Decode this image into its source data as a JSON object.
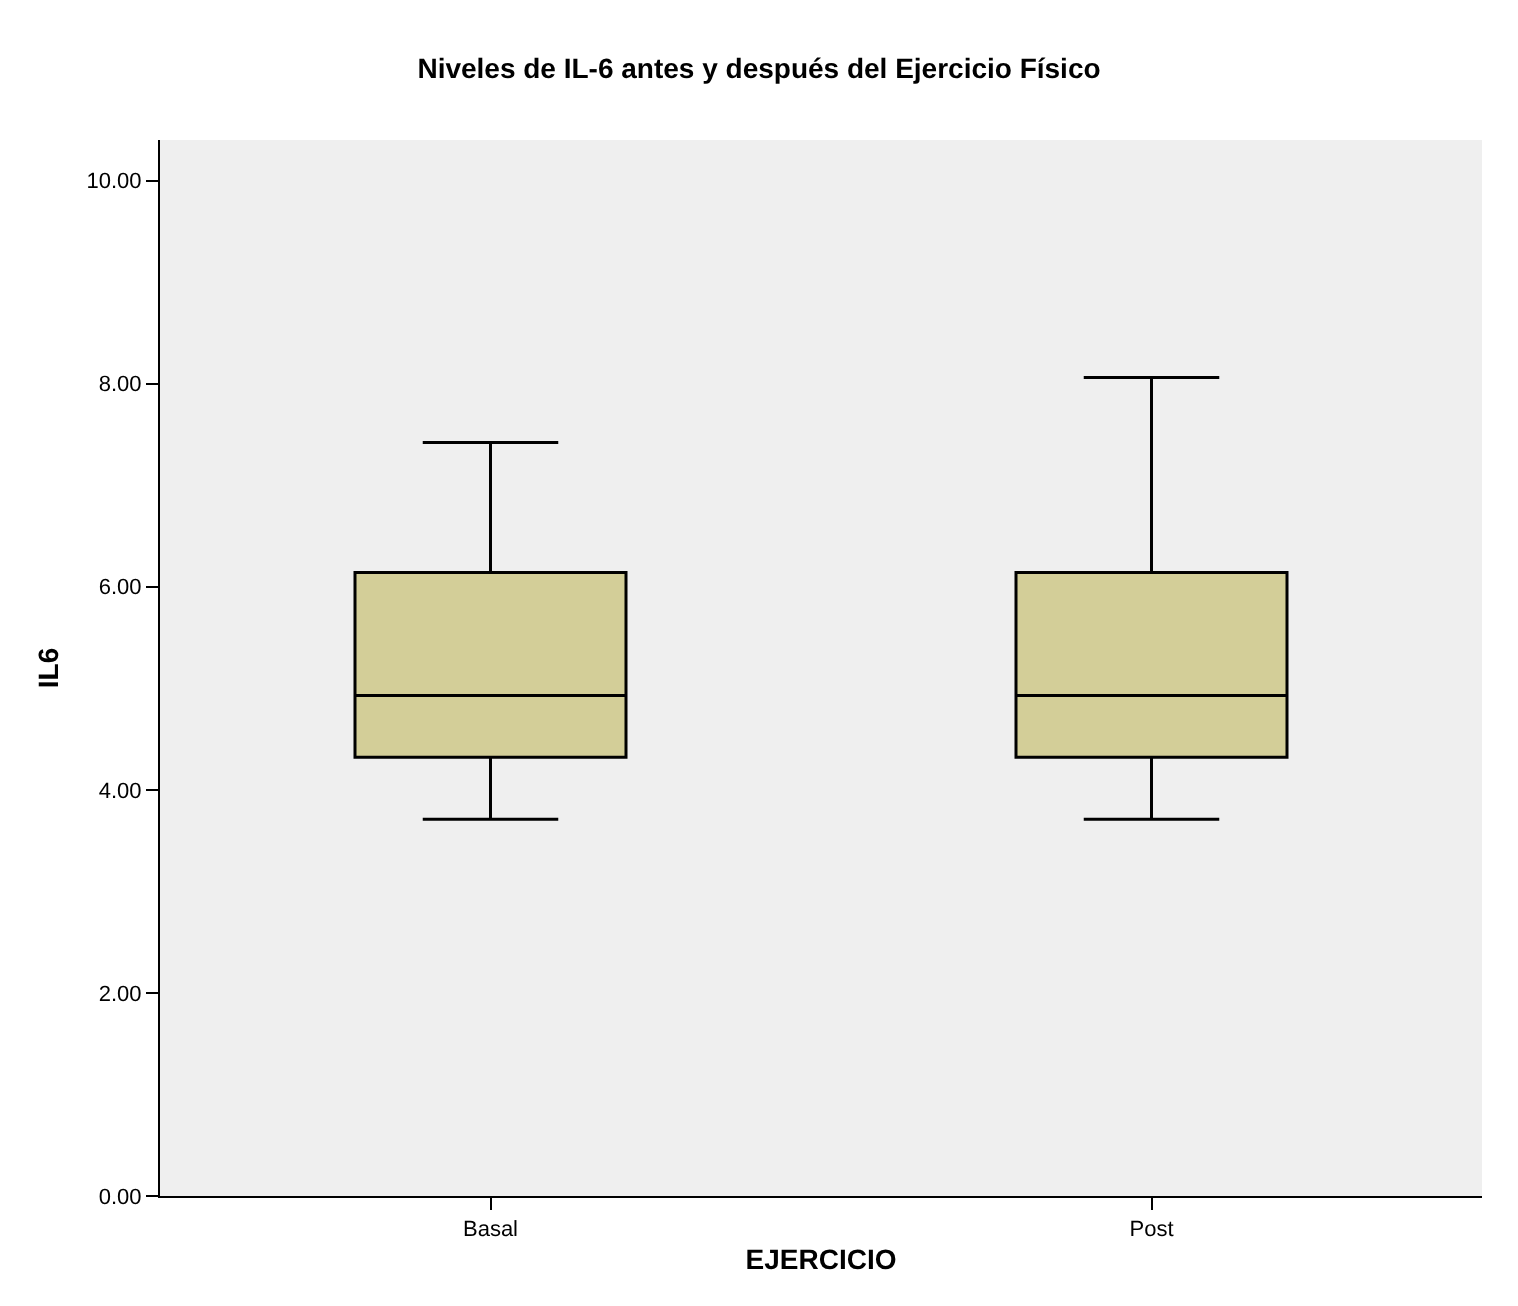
{
  "chart_data": {
    "type": "box",
    "title": "Niveles de IL-6 antes y después del Ejercicio Físico",
    "xlabel": "EJERCICIO",
    "ylabel": "IL6",
    "categories": [
      "Basal",
      "Post"
    ],
    "boxes": [
      {
        "low": 3.71,
        "q1": 4.32,
        "median": 4.93,
        "q3": 6.14,
        "high": 7.42
      },
      {
        "low": 3.71,
        "q1": 4.32,
        "median": 4.93,
        "q3": 6.14,
        "high": 8.06
      }
    ],
    "color": "#d3ce98",
    "grid": false,
    "ylim": [
      0,
      10.4
    ],
    "yticks": [
      {
        "value": 0,
        "label": "0.00"
      },
      {
        "value": 2,
        "label": "2.00"
      },
      {
        "value": 4,
        "label": "4.00"
      },
      {
        "value": 6,
        "label": "6.00"
      },
      {
        "value": 8,
        "label": "8.00"
      },
      {
        "value": 10,
        "label": "10.00"
      }
    ]
  }
}
